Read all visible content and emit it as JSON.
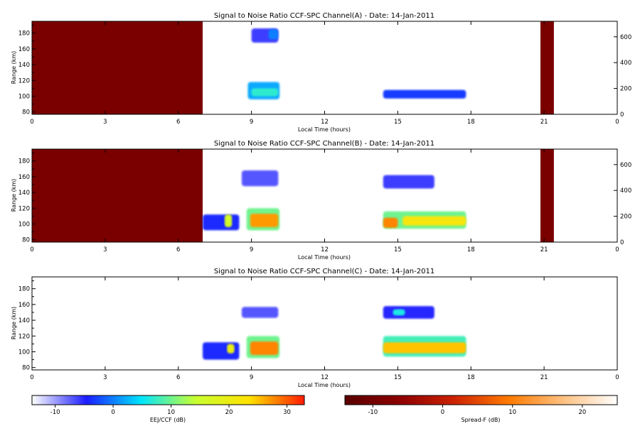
{
  "chart_data": [
    {
      "type": "heatmap",
      "title": "Signal to Noise Ratio CCF-SPC Channel(A) - Date: 14-Jan-2011",
      "xlabel": "Local Time (hours)",
      "ylabel": "Range (km)",
      "xlim": [
        0,
        24
      ],
      "ylim": [
        77,
        195
      ],
      "x_ticks": [
        "0",
        "3",
        "6",
        "9",
        "12",
        "15",
        "18",
        "21",
        "0"
      ],
      "y_ticks": [
        80,
        100,
        120,
        140,
        160,
        180
      ],
      "y2_lim": [
        0,
        720
      ],
      "y2_ticks": [
        0,
        200,
        400,
        600
      ],
      "regions": [
        {
          "kind": "spreadf",
          "x": [
            0,
            7.0
          ],
          "y": [
            77,
            195
          ],
          "level_db": -9
        },
        {
          "kind": "spreadf",
          "x": [
            20.85,
            21.4
          ],
          "y": [
            77,
            195
          ],
          "level_db": -9
        },
        {
          "kind": "eej",
          "x": [
            8.85,
            10.15
          ],
          "y": [
            96,
            118
          ],
          "level_db": 2
        },
        {
          "kind": "eej",
          "x": [
            9.0,
            10.1
          ],
          "y": [
            100,
            110
          ],
          "level_db": 7
        },
        {
          "kind": "eej",
          "x": [
            14.4,
            17.8
          ],
          "y": [
            97,
            108
          ],
          "level_db": -3
        },
        {
          "kind": "eej",
          "x": [
            9.0,
            10.1
          ],
          "y": [
            168,
            186
          ],
          "level_db": -6
        },
        {
          "kind": "eej",
          "x": [
            9.7,
            10.1
          ],
          "y": [
            172,
            185
          ],
          "level_db": 0
        }
      ]
    },
    {
      "type": "heatmap",
      "title": "Signal to Noise Ratio CCF-SPC Channel(B) - Date: 14-Jan-2011",
      "xlabel": "Local Time (hours)",
      "ylabel": "Range (km)",
      "xlim": [
        0,
        24
      ],
      "ylim": [
        77,
        195
      ],
      "x_ticks": [
        "0",
        "3",
        "6",
        "9",
        "12",
        "15",
        "18",
        "21",
        "0"
      ],
      "y_ticks": [
        80,
        100,
        120,
        140,
        160,
        180
      ],
      "y2_lim": [
        0,
        720
      ],
      "y2_ticks": [
        0,
        200,
        400,
        600
      ],
      "regions": [
        {
          "kind": "spreadf",
          "x": [
            0,
            7.0
          ],
          "y": [
            77,
            195
          ],
          "level_db": -9
        },
        {
          "kind": "spreadf",
          "x": [
            20.85,
            21.4
          ],
          "y": [
            77,
            195
          ],
          "level_db": -9
        },
        {
          "kind": "eej",
          "x": [
            8.8,
            10.15
          ],
          "y": [
            92,
            120
          ],
          "level_db": 10
        },
        {
          "kind": "eej",
          "x": [
            8.95,
            10.1
          ],
          "y": [
            96,
            113
          ],
          "level_db": 27
        },
        {
          "kind": "eej",
          "x": [
            14.4,
            17.8
          ],
          "y": [
            94,
            116
          ],
          "level_db": 10
        },
        {
          "kind": "eej",
          "x": [
            14.4,
            15.0
          ],
          "y": [
            95,
            108
          ],
          "level_db": 28
        },
        {
          "kind": "eej",
          "x": [
            15.2,
            17.8
          ],
          "y": [
            98,
            110
          ],
          "level_db": 22
        },
        {
          "kind": "eej",
          "x": [
            7.0,
            8.5
          ],
          "y": [
            92,
            112
          ],
          "level_db": -4
        },
        {
          "kind": "eej",
          "x": [
            7.9,
            8.2
          ],
          "y": [
            96,
            112
          ],
          "level_db": 16
        },
        {
          "kind": "eej",
          "x": [
            8.6,
            10.1
          ],
          "y": [
            148,
            168
          ],
          "level_db": -7
        },
        {
          "kind": "eej",
          "x": [
            14.4,
            16.5
          ],
          "y": [
            145,
            162
          ],
          "level_db": -6
        }
      ]
    },
    {
      "type": "heatmap",
      "title": "Signal to Noise Ratio CCF-SPC Channel(C) - Date: 14-Jan-2011",
      "xlabel": "Local Time (hours)",
      "ylabel": "Range (km)",
      "xlim": [
        0,
        24
      ],
      "ylim": [
        77,
        195
      ],
      "x_ticks": [
        "0",
        "3",
        "6",
        "9",
        "12",
        "15",
        "18",
        "21",
        "0"
      ],
      "y_ticks": [
        80,
        100,
        120,
        140,
        160,
        180
      ],
      "regions": [
        {
          "kind": "eej",
          "x": [
            8.8,
            10.15
          ],
          "y": [
            92,
            120
          ],
          "level_db": 10
        },
        {
          "kind": "eej",
          "x": [
            8.95,
            10.1
          ],
          "y": [
            96,
            113
          ],
          "level_db": 28
        },
        {
          "kind": "eej",
          "x": [
            14.4,
            17.8
          ],
          "y": [
            94,
            120
          ],
          "level_db": 8
        },
        {
          "kind": "eej",
          "x": [
            14.4,
            17.8
          ],
          "y": [
            98,
            112
          ],
          "level_db": 25
        },
        {
          "kind": "eej",
          "x": [
            7.0,
            8.5
          ],
          "y": [
            90,
            112
          ],
          "level_db": -4
        },
        {
          "kind": "eej",
          "x": [
            8.0,
            8.3
          ],
          "y": [
            98,
            110
          ],
          "level_db": 20
        },
        {
          "kind": "eej",
          "x": [
            8.6,
            10.1
          ],
          "y": [
            143,
            157
          ],
          "level_db": -7
        },
        {
          "kind": "eej",
          "x": [
            14.4,
            16.5
          ],
          "y": [
            142,
            158
          ],
          "level_db": -5
        },
        {
          "kind": "eej",
          "x": [
            14.8,
            15.3
          ],
          "y": [
            146,
            154
          ],
          "level_db": 6
        }
      ]
    }
  ],
  "colorbars": [
    {
      "label": "EEJ/CCF (dB)",
      "range": [
        -14,
        33
      ],
      "ticks": [
        "-10",
        "0",
        "10",
        "20",
        "30"
      ],
      "tick_values": [
        -10,
        0,
        10,
        20,
        30
      ],
      "colors": [
        "#ffffff",
        "#1c1cff",
        "#00e5ff",
        "#c8ff32",
        "#ffe100",
        "#ff1a00"
      ]
    },
    {
      "label": "Spread-F (dB)",
      "range": [
        -14,
        25
      ],
      "ticks": [
        "-10",
        "0",
        "10",
        "20"
      ],
      "tick_values": [
        -10,
        0,
        10,
        20
      ],
      "colors": [
        "#5a0000",
        "#8c0000",
        "#cc2200",
        "#ff7a00",
        "#ffc080",
        "#ffffff"
      ]
    }
  ]
}
